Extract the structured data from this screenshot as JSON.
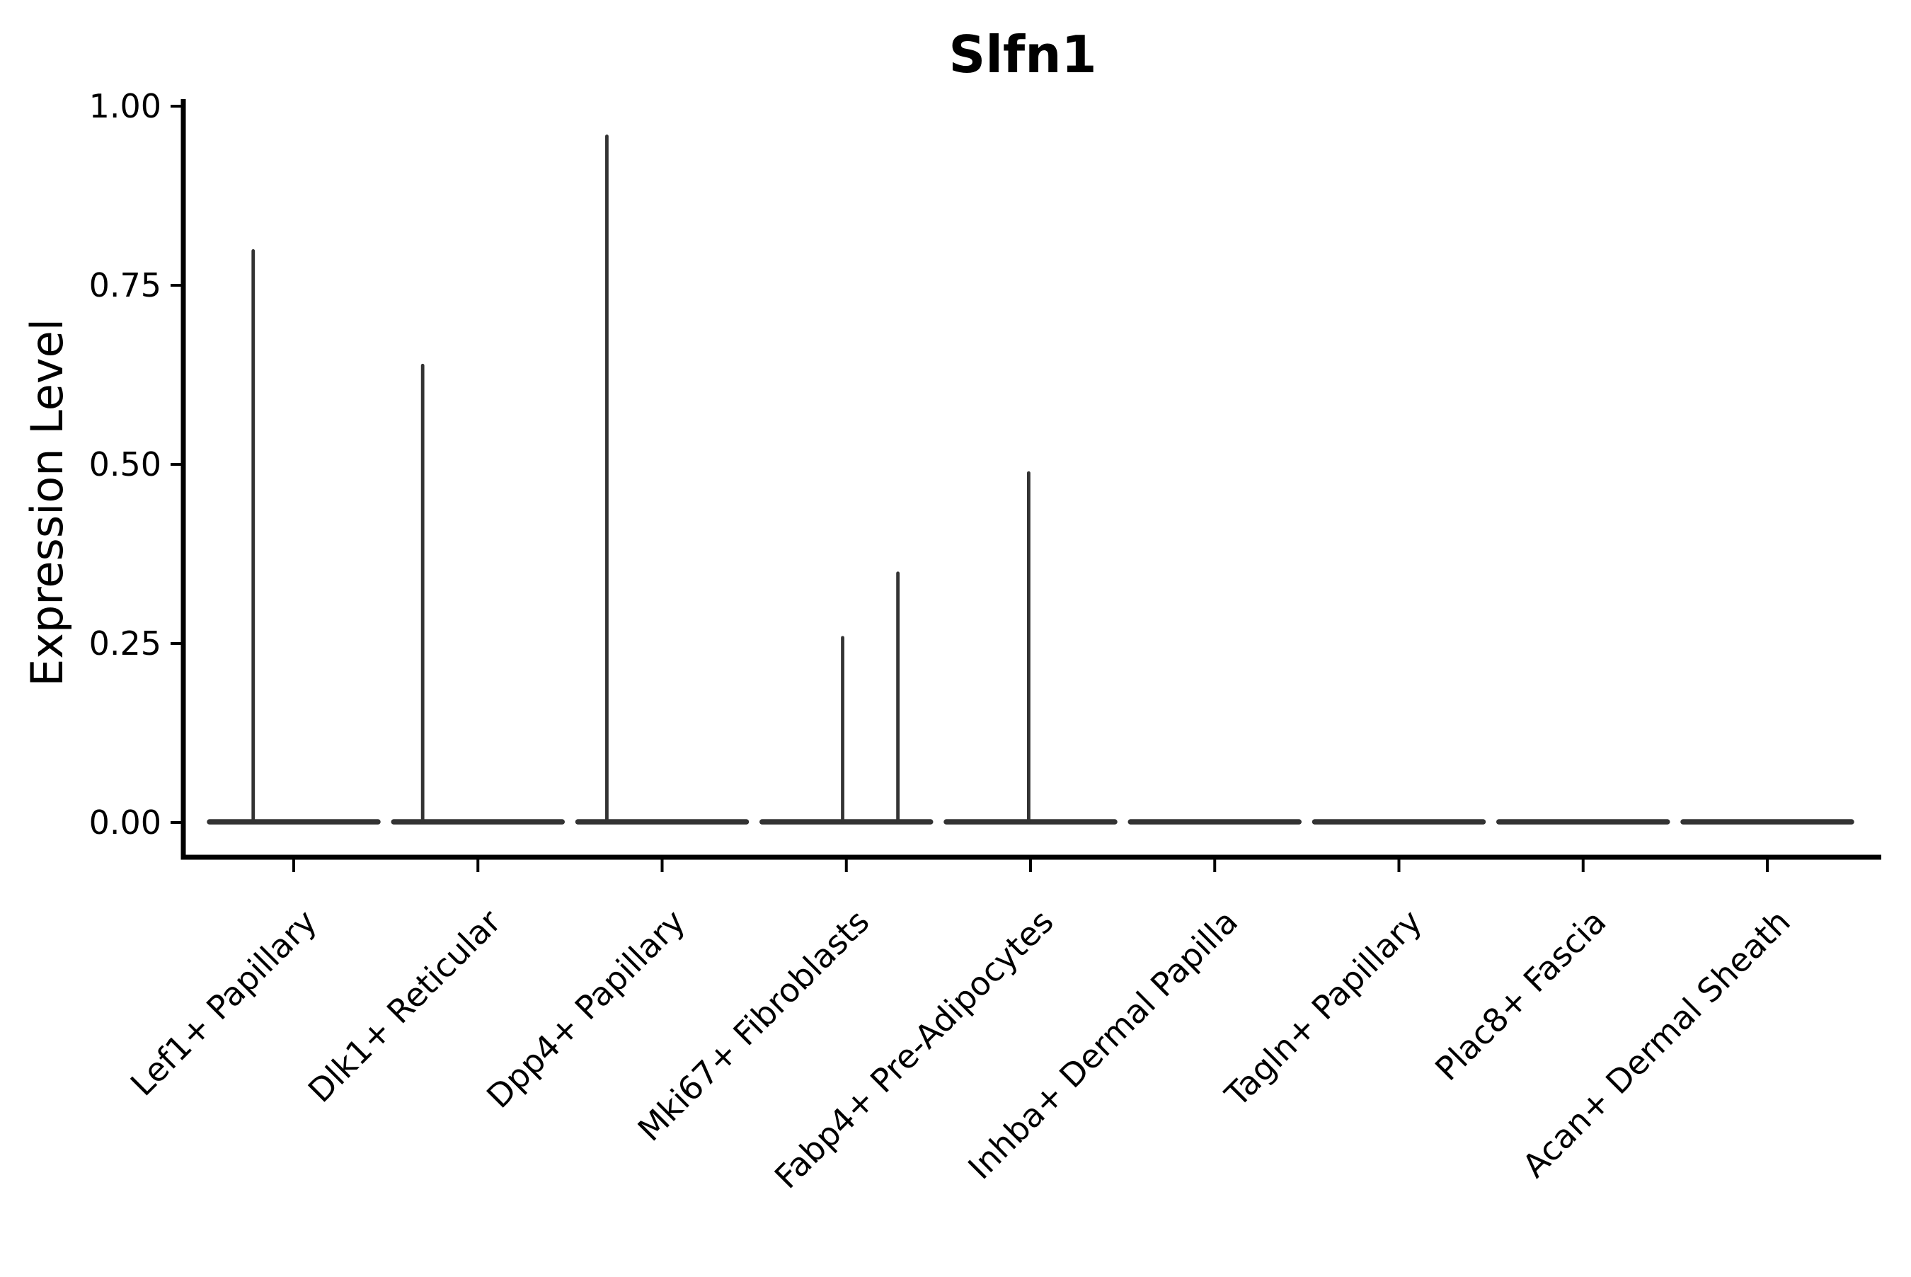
{
  "title": "Slfn1",
  "chart_data": {
    "type": "violin",
    "title": "Slfn1",
    "xlabel": "",
    "ylabel": "Expression Level",
    "ylim": [
      0,
      1.0
    ],
    "grid": false,
    "legend": "none",
    "yticks": [
      {
        "value": 1.0,
        "label": "1.00"
      },
      {
        "value": 0.75,
        "label": "0.75"
      },
      {
        "value": 0.5,
        "label": "0.50"
      },
      {
        "value": 0.25,
        "label": "0.25"
      },
      {
        "value": 0.0,
        "label": "0.00"
      }
    ],
    "categories": [
      "Lef1+ Papillary",
      "Dlk1+ Reticular",
      "Dpp4+ Papillary",
      "Mki67+ Fibroblasts",
      "Fabp4+ Pre-Adipocytes",
      "Inhba+ Dermal Papilla",
      "Tagln+ Papillary",
      "Plac8+ Fascia",
      "Acan+ Dermal Sheath"
    ],
    "violins": [
      {
        "category": "Lef1+ Papillary",
        "baseline_value": 0,
        "spikes": [
          {
            "pos": -0.22,
            "max": 0.8
          }
        ]
      },
      {
        "category": "Dlk1+ Reticular",
        "baseline_value": 0,
        "spikes": [
          {
            "pos": -0.3,
            "max": 0.64
          }
        ]
      },
      {
        "category": "Dpp4+ Papillary",
        "baseline_value": 0,
        "spikes": [
          {
            "pos": -0.3,
            "max": 0.96
          }
        ]
      },
      {
        "category": "Mki67+ Fibroblasts",
        "baseline_value": 0,
        "spikes": [
          {
            "pos": -0.02,
            "max": 0.26
          },
          {
            "pos": 0.28,
            "max": 0.35
          }
        ]
      },
      {
        "category": "Fabp4+ Pre-Adipocytes",
        "baseline_value": 0,
        "spikes": [
          {
            "pos": -0.01,
            "max": 0.49
          }
        ]
      },
      {
        "category": "Inhba+ Dermal Papilla",
        "baseline_value": 0,
        "spikes": []
      },
      {
        "category": "Tagln+ Papillary",
        "baseline_value": 0,
        "spikes": []
      },
      {
        "category": "Plac8+ Fascia",
        "baseline_value": 0,
        "spikes": []
      },
      {
        "category": "Acan+ Dermal Sheath",
        "baseline_value": 0,
        "spikes": []
      }
    ],
    "style": {
      "violin_line_color": "#333333",
      "axis_color": "#000000",
      "background": "#ffffff"
    }
  }
}
